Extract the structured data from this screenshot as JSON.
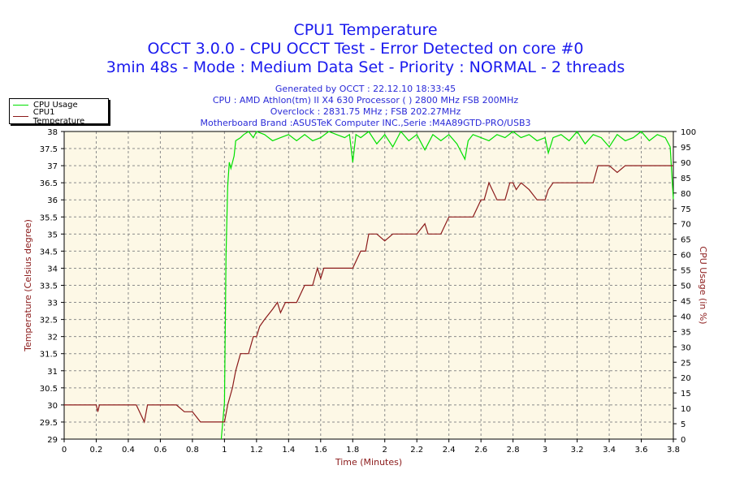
{
  "header": {
    "title": "CPU1 Temperature",
    "subtitle1": "OCCT 3.0.0 - CPU OCCT Test - Error Detected on core #0",
    "subtitle2": "3min 48s - Mode : Medium Data Set - Priority : NORMAL - 2 threads",
    "generated": "Generated by OCCT : 22.12.10 18:33:45",
    "cpu": "CPU : AMD Athlon(tm) II X4 630 Processor (  ) 2800 MHz FSB 200MHz",
    "overclock": "Overclock : 2831.75 MHz ; FSB 202.27MHz",
    "motherboard": "Motherboard Brand :ASUSTeK Computer INC.,Serie :M4A89GTD-PRO/USB3"
  },
  "colors": {
    "cpu_usage": "#00e000",
    "cpu_temperature": "#8b1a1a",
    "plot_background": "#fdf8e6",
    "grid": "#8c8c8c",
    "title_text": "#1a1aee",
    "meta_text": "#2a2ad8"
  },
  "chart_data": {
    "type": "line",
    "title": "CPU1 Temperature",
    "xlabel": "Time (Minutes)",
    "ylabel_left": "Temperature (Celsius degree)",
    "ylabel_right": "CPU Usage (in %)",
    "xlim": [
      0,
      3.8
    ],
    "ylim_left": [
      29,
      38
    ],
    "ylim_right": [
      0,
      100
    ],
    "x_ticks": [
      "0",
      "0.2",
      "0.4",
      "0.6",
      "0.8",
      "1",
      "1.2",
      "1.4",
      "1.6",
      "1.8",
      "2",
      "2.2",
      "2.4",
      "2.6",
      "2.8",
      "3",
      "3.2",
      "3.4",
      "3.6",
      "3.8"
    ],
    "y_ticks_left": [
      "38",
      "37.5",
      "37",
      "36.5",
      "36",
      "35.5",
      "35",
      "34.5",
      "34",
      "33.5",
      "33",
      "32.5",
      "32",
      "31.5",
      "31",
      "30.5",
      "30",
      "29.5",
      "29"
    ],
    "y_ticks_right": [
      "100",
      "95",
      "90",
      "85",
      "80",
      "75",
      "70",
      "65",
      "60",
      "55",
      "50",
      "45",
      "40",
      "35",
      "30",
      "25",
      "20",
      "15",
      "10",
      "5",
      "0"
    ],
    "grid": true,
    "legend_position": "top-left",
    "series": [
      {
        "name": "CPU Usage",
        "axis": "right",
        "x": [
          0.98,
          1.0,
          1.01,
          1.02,
          1.03,
          1.04,
          1.06,
          1.07,
          1.1,
          1.12,
          1.15,
          1.18,
          1.2,
          1.25,
          1.3,
          1.35,
          1.4,
          1.45,
          1.5,
          1.55,
          1.6,
          1.65,
          1.7,
          1.75,
          1.78,
          1.8,
          1.82,
          1.85,
          1.9,
          1.95,
          2.0,
          2.05,
          2.1,
          2.15,
          2.2,
          2.25,
          2.3,
          2.35,
          2.4,
          2.45,
          2.5,
          2.52,
          2.55,
          2.6,
          2.65,
          2.7,
          2.75,
          2.8,
          2.85,
          2.9,
          2.95,
          3.0,
          3.02,
          3.05,
          3.1,
          3.15,
          3.2,
          3.25,
          3.3,
          3.35,
          3.4,
          3.45,
          3.5,
          3.55,
          3.6,
          3.65,
          3.7,
          3.75,
          3.78,
          3.8
        ],
        "values": [
          0,
          12,
          60,
          82,
          90,
          88,
          92,
          97,
          98,
          99,
          100,
          98,
          100,
          99,
          97,
          98,
          99,
          97,
          99,
          97,
          98,
          100,
          99,
          98,
          99,
          90,
          99,
          98,
          100,
          96,
          99,
          95,
          100,
          97,
          99,
          94,
          99,
          97,
          99,
          96,
          91,
          97,
          99,
          98,
          97,
          99,
          98,
          100,
          98,
          99,
          97,
          98,
          93,
          98,
          99,
          97,
          100,
          96,
          99,
          98,
          95,
          99,
          97,
          98,
          100,
          97,
          99,
          98,
          95,
          78
        ]
      },
      {
        "name": "CPU1 Temperature",
        "axis": "left",
        "x": [
          0,
          0.2,
          0.21,
          0.22,
          0.45,
          0.5,
          0.52,
          0.7,
          0.75,
          0.8,
          0.85,
          1.0,
          1.02,
          1.05,
          1.07,
          1.1,
          1.12,
          1.15,
          1.18,
          1.2,
          1.22,
          1.25,
          1.3,
          1.33,
          1.35,
          1.38,
          1.4,
          1.45,
          1.5,
          1.55,
          1.58,
          1.6,
          1.62,
          1.65,
          1.7,
          1.75,
          1.8,
          1.85,
          1.88,
          1.9,
          1.95,
          2.0,
          2.05,
          2.1,
          2.15,
          2.2,
          2.25,
          2.27,
          2.3,
          2.35,
          2.4,
          2.45,
          2.5,
          2.55,
          2.6,
          2.62,
          2.65,
          2.7,
          2.75,
          2.78,
          2.8,
          2.82,
          2.85,
          2.9,
          2.95,
          3.0,
          3.02,
          3.05,
          3.1,
          3.15,
          3.2,
          3.25,
          3.3,
          3.33,
          3.35,
          3.4,
          3.45,
          3.5,
          3.6,
          3.7,
          3.8
        ],
        "values": [
          30,
          30,
          29.8,
          30,
          30,
          29.5,
          30,
          30,
          29.8,
          29.8,
          29.5,
          29.5,
          30,
          30.5,
          31,
          31.5,
          31.5,
          31.5,
          32,
          32,
          32.3,
          32.5,
          32.8,
          33,
          32.7,
          33,
          33,
          33,
          33.5,
          33.5,
          34,
          33.7,
          34,
          34,
          34,
          34,
          34,
          34.5,
          34.5,
          35,
          35,
          34.8,
          35,
          35,
          35,
          35,
          35.3,
          35,
          35,
          35,
          35.5,
          35.5,
          35.5,
          35.5,
          36,
          36,
          36.5,
          36,
          36,
          36.5,
          36.5,
          36.3,
          36.5,
          36.3,
          36,
          36,
          36.3,
          36.5,
          36.5,
          36.5,
          36.5,
          36.5,
          36.5,
          37,
          37,
          37,
          36.8,
          37,
          37,
          37,
          37
        ]
      }
    ]
  }
}
